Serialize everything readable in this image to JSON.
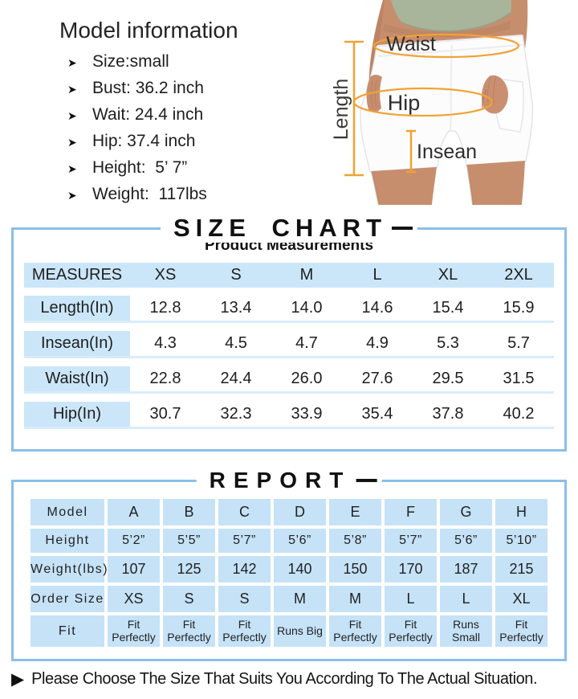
{
  "model_info": {
    "title": "Model information",
    "items": [
      "Size:small",
      "Bust: 36.2 inch",
      "Wait: 24.4 inch",
      "Hip: 37.4 inch",
      "Height:  5’ 7”",
      "Weight:  117lbs"
    ]
  },
  "figure": {
    "labels": {
      "waist": "Waist",
      "hip": "Hip",
      "insean": "Insean",
      "length": "Length"
    }
  },
  "size_chart": {
    "title": "SIZE CHART",
    "subtitle": "Product Measurements",
    "columns": [
      "MEASURES",
      "XS",
      "S",
      "M",
      "L",
      "XL",
      "2XL"
    ],
    "rows": [
      {
        "label": "Length(In)",
        "values": [
          "12.8",
          "13.4",
          "14.0",
          "14.6",
          "15.4",
          "15.9"
        ]
      },
      {
        "label": "Insean(In)",
        "values": [
          "4.3",
          "4.5",
          "4.7",
          "4.9",
          "5.3",
          "5.7"
        ]
      },
      {
        "label": "Waist(In)",
        "values": [
          "22.8",
          "24.4",
          "26.0",
          "27.6",
          "29.5",
          "31.5"
        ]
      },
      {
        "label": "Hip(In)",
        "values": [
          "30.7",
          "32.3",
          "33.9",
          "35.4",
          "37.8",
          "40.2"
        ]
      }
    ]
  },
  "report": {
    "title": "REPORT",
    "rows": [
      {
        "label": "Model",
        "values": [
          "A",
          "B",
          "C",
          "D",
          "E",
          "F",
          "G",
          "H"
        ]
      },
      {
        "label": "Height",
        "values": [
          "5’2”",
          "5’5”",
          "5’7”",
          "5’6”",
          "5’8”",
          "5’7”",
          "5’6”",
          "5’10”"
        ]
      },
      {
        "label": "Weight(lbs)",
        "values": [
          "107",
          "125",
          "142",
          "140",
          "150",
          "170",
          "187",
          "215"
        ]
      },
      {
        "label": "Order Size",
        "values": [
          "XS",
          "S",
          "S",
          "M",
          "M",
          "L",
          "L",
          "XL"
        ]
      },
      {
        "label": "Fit",
        "values": [
          "Fit Perfectly",
          "Fit Perfectly",
          "Fit Perfectly",
          "Runs Big",
          "Fit Perfectly",
          "Fit Perfectly",
          "Runs Small",
          "Fit Perfectly"
        ]
      }
    ]
  },
  "footer": {
    "note": "Please Choose The Size That Suits You According To The Actual Situation."
  },
  "icons": {
    "bullet_arrow": "➤",
    "footer_arrow": "▶"
  },
  "colors": {
    "box_border_blue": "#8abee9",
    "measure_row_blue": "#cbe6f8",
    "measure_underline_blue": "#d8ecfb",
    "report_cell_blue": "#c5e2f7",
    "annotation_orange": "#f1a233",
    "top_green": "#a8b59b",
    "skin_tan": "#c78e6e"
  }
}
